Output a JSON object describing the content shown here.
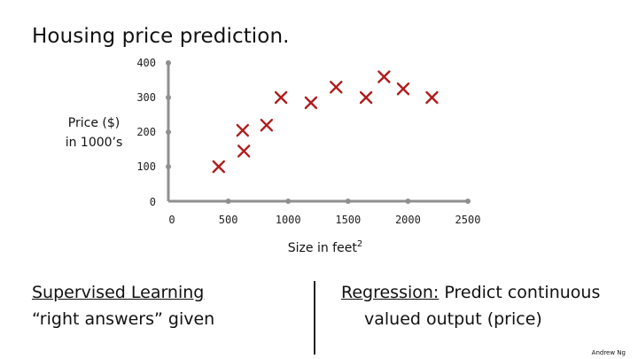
{
  "slide": {
    "title": "Housing price prediction.",
    "left_heading": "Supervised Learning",
    "left_line2": "“right answers” given",
    "right_term": "Regression:",
    "right_rest": " Predict continuous",
    "right_line2": "valued output (price)",
    "credit": "Andrew Ng"
  },
  "chart_data": {
    "type": "scatter",
    "title": "",
    "xlabel": "Size in feet",
    "xlabel_superscript": "2",
    "ylabel_lines": [
      "Price ($)",
      "in 1000’s"
    ],
    "xlim": [
      0,
      2500
    ],
    "ylim": [
      0,
      400
    ],
    "x_ticks": [
      0,
      500,
      1000,
      1500,
      2000,
      2500
    ],
    "y_ticks": [
      0,
      100,
      200,
      300,
      400
    ],
    "marker": "x",
    "marker_color": "#b01c1c",
    "axis_color": "#8f8f8f",
    "grid": false,
    "points": [
      {
        "x": 420,
        "y": 100
      },
      {
        "x": 630,
        "y": 145
      },
      {
        "x": 620,
        "y": 205
      },
      {
        "x": 820,
        "y": 220
      },
      {
        "x": 940,
        "y": 300
      },
      {
        "x": 1190,
        "y": 285
      },
      {
        "x": 1400,
        "y": 330
      },
      {
        "x": 1650,
        "y": 300
      },
      {
        "x": 1800,
        "y": 360
      },
      {
        "x": 1960,
        "y": 325
      },
      {
        "x": 2200,
        "y": 300
      }
    ]
  }
}
